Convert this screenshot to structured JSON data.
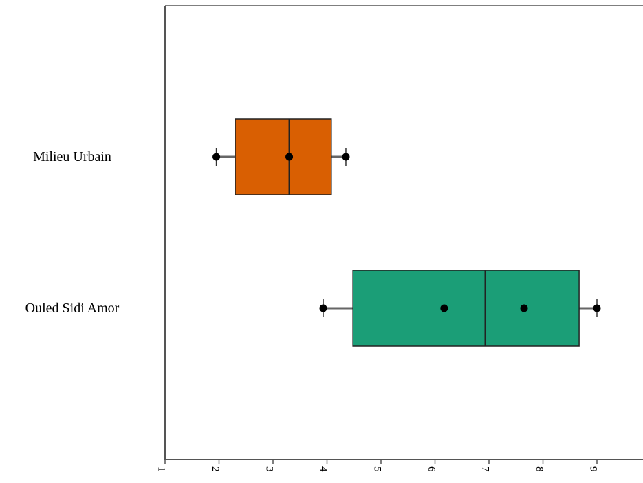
{
  "chart_data": {
    "type": "boxplot",
    "orientation": "horizontal",
    "title": "",
    "xlabel": "",
    "ylabel": "",
    "xlim": [
      1,
      9.9
    ],
    "x_ticks": [
      "1",
      "2",
      "3",
      "4",
      "5",
      "6",
      "7",
      "8",
      "9"
    ],
    "grid": false,
    "categories": [
      "Milieu Urbain",
      "Ouled Sidi Amor"
    ],
    "boxes": [
      {
        "category": "Milieu Urbain",
        "color": "#d95f02",
        "whisker_low": 1.95,
        "q1": 2.3,
        "median": 3.3,
        "q3": 4.08,
        "whisker_high": 4.35,
        "points": [
          1.95,
          3.3,
          4.35
        ]
      },
      {
        "category": "Ouled Sidi Amor",
        "color": "#1b9e77",
        "whisker_low": 3.93,
        "q1": 4.48,
        "median": 6.93,
        "q3": 8.67,
        "whisker_high": 9.0,
        "points": [
          3.93,
          6.17,
          7.65,
          9.0
        ]
      }
    ]
  }
}
